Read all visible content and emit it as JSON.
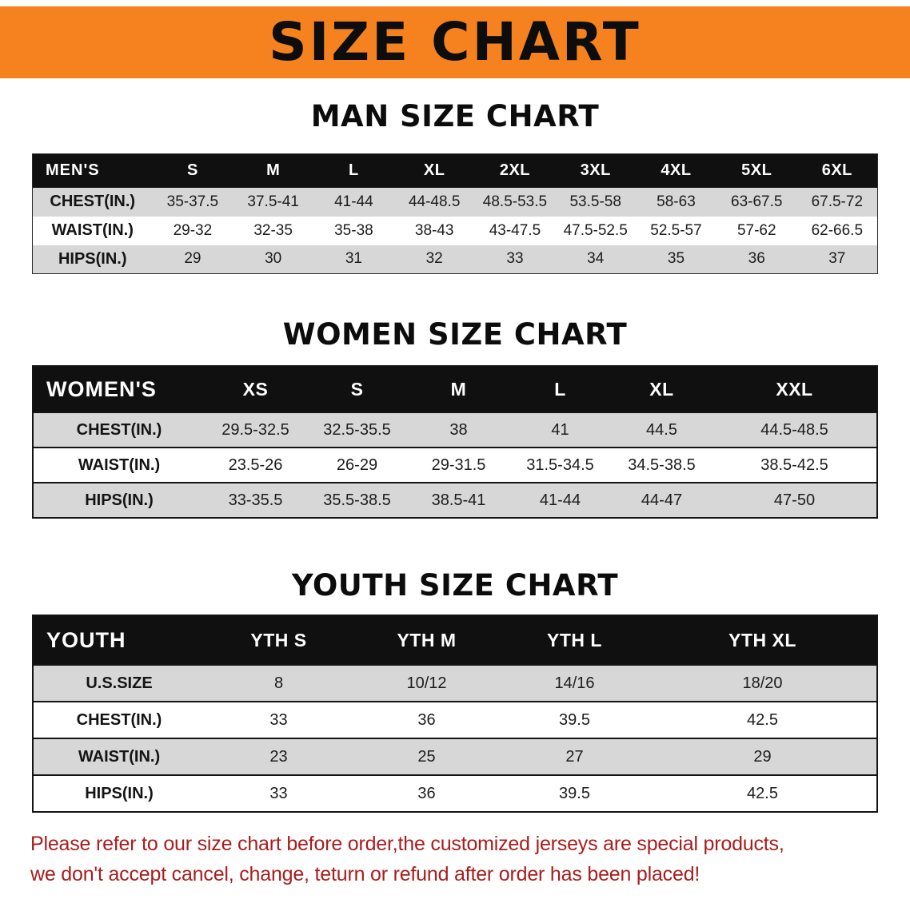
{
  "banner": {
    "title": "SIZE CHART",
    "bg_color": "#f5821f",
    "text_color": "#0d0d0d"
  },
  "sections": {
    "men": {
      "heading": "MAN SIZE CHART"
    },
    "women": {
      "heading": "WOMEN SIZE CHART"
    },
    "youth": {
      "heading": "YOUTH SIZE CHART"
    }
  },
  "tables": {
    "men": {
      "header": [
        "MEN'S",
        "S",
        "M",
        "L",
        "XL",
        "2XL",
        "3XL",
        "4XL",
        "5XL",
        "6XL"
      ],
      "rows": [
        [
          "CHEST(IN.)",
          "35-37.5",
          "37.5-41",
          "41-44",
          "44-48.5",
          "48.5-53.5",
          "53.5-58",
          "58-63",
          "63-67.5",
          "67.5-72"
        ],
        [
          "WAIST(IN.)",
          "29-32",
          "32-35",
          "35-38",
          "38-43",
          "43-47.5",
          "47.5-52.5",
          "52.5-57",
          "57-62",
          "62-66.5"
        ],
        [
          "HIPS(IN.)",
          "29",
          "30",
          "31",
          "32",
          "33",
          "34",
          "35",
          "36",
          "37"
        ]
      ]
    },
    "women": {
      "header": [
        "WOMEN'S",
        "XS",
        "S",
        "M",
        "L",
        "XL",
        "XXL"
      ],
      "rows": [
        [
          "CHEST(IN.)",
          "29.5-32.5",
          "32.5-35.5",
          "38",
          "41",
          "44.5",
          "44.5-48.5"
        ],
        [
          "WAIST(IN.)",
          "23.5-26",
          "26-29",
          "29-31.5",
          "31.5-34.5",
          "34.5-38.5",
          "38.5-42.5"
        ],
        [
          "HIPS(IN.)",
          "33-35.5",
          "35.5-38.5",
          "38.5-41",
          "41-44",
          "44-47",
          "47-50"
        ]
      ]
    },
    "youth": {
      "header": [
        "YOUTH",
        "YTH S",
        "YTH M",
        "YTH L",
        "YTH XL"
      ],
      "rows": [
        [
          "U.S.SIZE",
          "8",
          "10/12",
          "14/16",
          "18/20"
        ],
        [
          "CHEST(IN.)",
          "33",
          "36",
          "39.5",
          "42.5"
        ],
        [
          "WAIST(IN.)",
          "23",
          "25",
          "27",
          "29"
        ],
        [
          "HIPS(IN.)",
          "33",
          "36",
          "39.5",
          "42.5"
        ]
      ]
    }
  },
  "footer": {
    "line1": "Please refer to our size chart before order,the customized jerseys are special products,",
    "line2": "we don't accept cancel, change, teturn or refund after order has been placed!",
    "text_color": "#a81d1d"
  }
}
